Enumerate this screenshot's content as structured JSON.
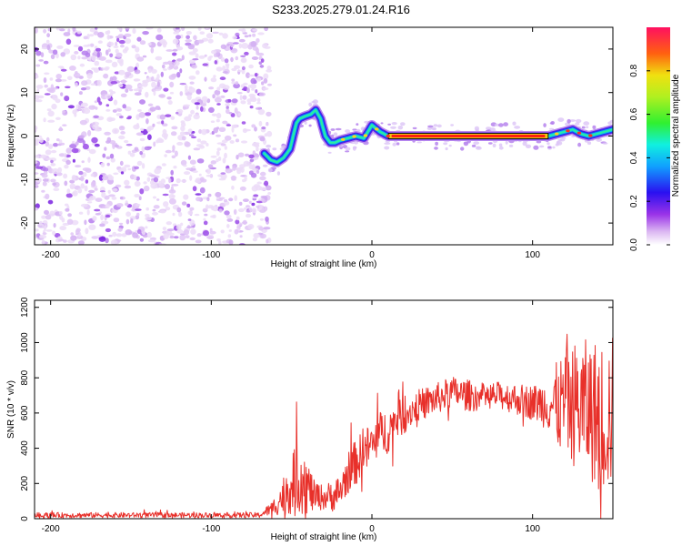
{
  "title": "S233.2025.279.01.24.R16",
  "chart_data": [
    {
      "type": "heatmap",
      "name": "spectrogram",
      "xlabel": "Height of straight line (km)",
      "ylabel": "Frequency (Hz)",
      "xlim": [
        -210,
        150
      ],
      "ylim": [
        -25,
        25
      ],
      "xticks": [
        -200,
        -100,
        0,
        100
      ],
      "yticks": [
        -20,
        -10,
        0,
        10,
        20
      ],
      "colorbar": {
        "label": "Normalized spectral amplitude",
        "range": [
          0.0,
          1.0
        ],
        "ticks": [
          "0.0",
          "0.2",
          "0.4",
          "0.6",
          "0.8"
        ]
      },
      "noise_region_x": [
        -210,
        -67
      ],
      "ridge": {
        "x": [
          -67,
          -63,
          -59,
          -55,
          -51,
          -49,
          -47,
          -45,
          -42,
          -38,
          -35,
          -32,
          -29,
          -26,
          -23,
          -20,
          -15,
          -10,
          -5,
          0,
          5,
          10,
          15,
          20,
          30,
          40,
          50,
          60,
          70,
          80,
          90,
          100,
          110,
          120,
          125,
          130,
          135,
          140,
          145,
          150
        ],
        "y": [
          -4,
          -5.5,
          -6,
          -5,
          -3,
          0,
          3,
          4,
          4.5,
          5,
          6,
          4,
          0,
          -1.5,
          -1.5,
          -1,
          -0.5,
          0,
          -0.5,
          2.5,
          1,
          0,
          0,
          0,
          0,
          0,
          0,
          0,
          0,
          0,
          0,
          0,
          0,
          1,
          1.5,
          0.5,
          0,
          0.5,
          1,
          1.5
        ]
      },
      "peak_x_range": [
        10,
        110
      ]
    },
    {
      "type": "line",
      "name": "snr",
      "xlabel": "Height of straight line (km)",
      "ylabel": "SNR (10 * v/v)",
      "xlim": [
        -210,
        150
      ],
      "ylim": [
        0,
        1240
      ],
      "xticks": [
        -200,
        -100,
        0,
        100
      ],
      "yticks": [
        0,
        200,
        400,
        600,
        800,
        1000,
        1200
      ],
      "color": "#e8302a",
      "envelope": {
        "x": [
          -210,
          -70,
          -62,
          -56,
          -52,
          -48,
          -44,
          -40,
          -36,
          -30,
          -25,
          -20,
          -15,
          -10,
          -5,
          0,
          5,
          10,
          15,
          20,
          25,
          30,
          40,
          50,
          60,
          70,
          80,
          90,
          100,
          110,
          115,
          120,
          125,
          130,
          135,
          140,
          145,
          150
        ],
        "mean": [
          20,
          20,
          60,
          120,
          180,
          200,
          250,
          180,
          130,
          120,
          130,
          150,
          260,
          320,
          380,
          420,
          480,
          500,
          560,
          580,
          620,
          650,
          680,
          720,
          700,
          690,
          700,
          680,
          660,
          650,
          640,
          650,
          650,
          640,
          620,
          600,
          580,
          600
        ],
        "spread": [
          15,
          15,
          40,
          100,
          150,
          200,
          220,
          160,
          90,
          70,
          90,
          100,
          120,
          130,
          130,
          130,
          130,
          130,
          110,
          100,
          90,
          90,
          90,
          90,
          90,
          80,
          80,
          90,
          100,
          150,
          250,
          300,
          350,
          380,
          400,
          420,
          440,
          450
        ]
      }
    }
  ]
}
